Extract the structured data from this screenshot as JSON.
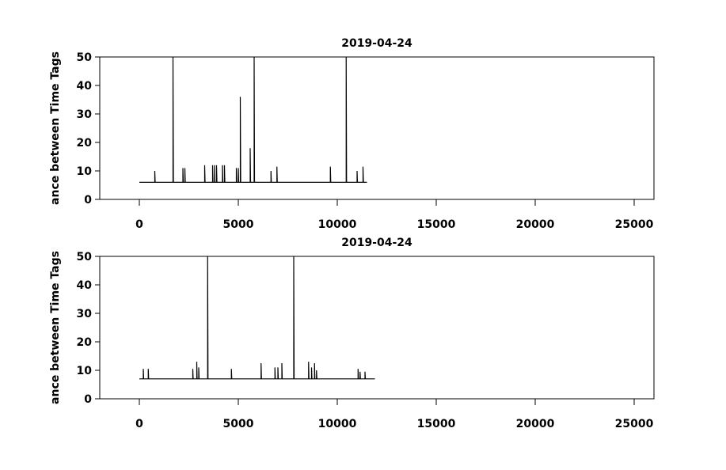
{
  "chart_data": [
    {
      "type": "line",
      "title": "2019-04-24",
      "y_label": "ance between Time Tags",
      "grid": false,
      "xlim": [
        -2000,
        26000
      ],
      "xticks": [
        0,
        5000,
        10000,
        15000,
        20000,
        25000
      ],
      "ylim": [
        0,
        50
      ],
      "yticks": [
        0,
        10,
        20,
        30,
        40,
        50
      ],
      "series": [
        {
          "color": "#000000",
          "x": [
            0,
            780,
            780,
            800,
            1700,
            1700,
            1720,
            2200,
            2200,
            2220,
            2300,
            2300,
            2320,
            3300,
            3300,
            3320,
            3700,
            3700,
            3720,
            3800,
            3800,
            3820,
            3900,
            3900,
            3920,
            4200,
            4200,
            4220,
            4300,
            4300,
            4320,
            4900,
            4900,
            4920,
            5000,
            5000,
            5020,
            5100,
            5100,
            5120,
            5600,
            5600,
            5620,
            5800,
            5800,
            5820,
            6650,
            6650,
            6670,
            6950,
            6950,
            6970,
            9650,
            9650,
            9670,
            10450,
            10450,
            10470,
            11000,
            11000,
            11020,
            11300,
            11300,
            11320,
            11500
          ],
          "values": [
            6,
            6,
            10,
            6,
            6,
            50,
            6,
            6,
            11,
            6,
            6,
            11,
            6,
            6,
            12,
            6,
            6,
            12,
            6,
            6,
            12,
            6,
            6,
            12,
            6,
            6,
            12,
            6,
            6,
            12,
            6,
            6,
            11,
            6,
            6,
            11,
            6,
            6,
            36,
            6,
            6,
            18,
            6,
            6,
            50,
            6,
            6,
            10,
            6,
            6,
            11.5,
            6,
            6,
            11.5,
            6,
            6,
            50,
            6,
            6,
            10,
            6,
            6,
            11.5,
            6,
            6
          ]
        }
      ]
    },
    {
      "type": "line",
      "title": "2019-04-24",
      "y_label": "ance between Time Tags",
      "grid": false,
      "xlim": [
        -2000,
        26000
      ],
      "xticks": [
        0,
        5000,
        10000,
        15000,
        20000,
        25000
      ],
      "ylim": [
        0,
        50
      ],
      "yticks": [
        0,
        10,
        20,
        30,
        40,
        50
      ],
      "series": [
        {
          "color": "#000000",
          "x": [
            0,
            200,
            200,
            220,
            450,
            450,
            470,
            2700,
            2700,
            2720,
            2900,
            2900,
            2920,
            3000,
            3000,
            3020,
            3450,
            3450,
            3470,
            4650,
            4650,
            4670,
            6150,
            6150,
            6170,
            6850,
            6850,
            6870,
            7000,
            7000,
            7020,
            7200,
            7200,
            7220,
            7800,
            7800,
            7820,
            8550,
            8550,
            8570,
            8700,
            8700,
            8720,
            8850,
            8850,
            8870,
            8950,
            8950,
            8970,
            11050,
            11050,
            11070,
            11150,
            11150,
            11170,
            11400,
            11400,
            11420,
            11900
          ],
          "values": [
            7,
            7,
            10.5,
            7,
            7,
            10.5,
            7,
            7,
            10.5,
            7,
            7,
            13,
            7,
            7,
            11,
            7,
            7,
            50,
            7,
            7,
            10.5,
            7,
            7,
            12.5,
            7,
            7,
            11,
            7,
            7,
            11,
            7,
            7,
            12.5,
            7,
            7,
            50,
            7,
            7,
            13,
            7,
            7,
            11,
            7,
            7,
            12.5,
            7,
            7,
            10,
            7,
            7,
            10.5,
            7,
            7,
            9.5,
            7,
            7,
            9.5,
            7,
            7
          ]
        }
      ]
    }
  ]
}
